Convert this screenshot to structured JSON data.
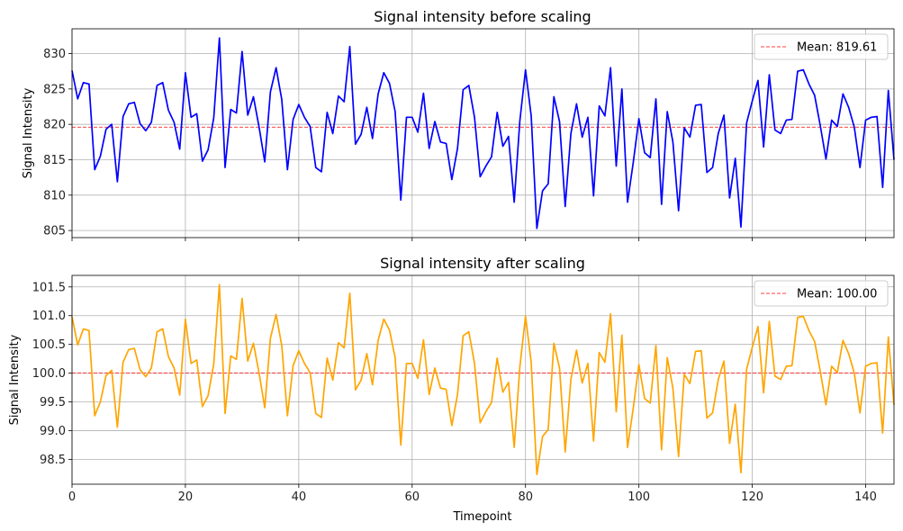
{
  "chart_data": [
    {
      "type": "line",
      "title": "Signal intensity before scaling",
      "xlabel": "",
      "ylabel": "Signal Intensity",
      "xlim": [
        0,
        145
      ],
      "ylim": [
        804,
        833.5
      ],
      "xticks": [
        0,
        20,
        40,
        60,
        80,
        100,
        120,
        140
      ],
      "xticklabels_visible": false,
      "yticks": [
        805,
        810,
        815,
        820,
        825,
        830
      ],
      "grid": true,
      "legend_position": "top-right",
      "series": [
        {
          "color": "#0000ff",
          "x_start": 0,
          "x_step": 1,
          "values": [
            827.6,
            823.6,
            825.9,
            825.7,
            813.6,
            815.5,
            819.3,
            820.0,
            811.9,
            821.1,
            822.9,
            823.1,
            820.1,
            819.1,
            820.3,
            825.5,
            825.9,
            822.0,
            820.3,
            816.5,
            827.3,
            821.0,
            821.5,
            814.8,
            816.4,
            820.9,
            832.2,
            813.9,
            822.1,
            821.6,
            830.3,
            821.3,
            823.9,
            819.6,
            814.7,
            824.6,
            828.0,
            823.5,
            813.6,
            820.7,
            822.8,
            821.0,
            819.7,
            813.9,
            813.3,
            821.7,
            818.7,
            824.0,
            823.2,
            831.0,
            817.2,
            818.6,
            822.4,
            818.0,
            824.3,
            827.3,
            825.8,
            821.8,
            809.3,
            821.0,
            821.0,
            818.9,
            824.4,
            816.6,
            820.4,
            817.5,
            817.3,
            812.2,
            816.6,
            824.9,
            825.5,
            821.0,
            812.6,
            814.1,
            815.4,
            821.7,
            816.9,
            818.3,
            809.0,
            820.5,
            827.7,
            821.2,
            805.3,
            810.6,
            811.6,
            823.9,
            820.4,
            808.4,
            818.7,
            822.9,
            818.2,
            821.0,
            809.9,
            822.6,
            821.2,
            828.0,
            814.1,
            825.0,
            809.0,
            814.6,
            820.8,
            816.0,
            815.3,
            823.6,
            808.7,
            821.8,
            817.5,
            807.8,
            819.5,
            818.2,
            822.7,
            822.8,
            813.2,
            813.9,
            818.7,
            821.3,
            809.6,
            815.2,
            805.5,
            820.2,
            823.3,
            826.2,
            816.8,
            827.0,
            819.2,
            818.7,
            820.6,
            820.7,
            827.5,
            827.7,
            825.7,
            824.1,
            819.8,
            815.1,
            820.6,
            819.7,
            824.3,
            822.4,
            819.6,
            813.9,
            820.6,
            821.0,
            821.1,
            811.1,
            824.8,
            815.0
          ]
        }
      ],
      "hline": {
        "value": 819.61,
        "label": "Mean: 819.61",
        "color": "#ff0000"
      }
    },
    {
      "type": "line",
      "title": "Signal intensity after scaling",
      "xlabel": "Timepoint",
      "ylabel": "Signal Intensity",
      "xlim": [
        0,
        145
      ],
      "ylim": [
        98.07,
        101.7
      ],
      "xticks": [
        0,
        20,
        40,
        60,
        80,
        100,
        120,
        140
      ],
      "xticklabels_visible": true,
      "yticks": [
        98.5,
        99.0,
        99.5,
        100.0,
        100.5,
        101.0,
        101.5
      ],
      "ytick_labels": [
        "98.5",
        "99.0",
        "99.5",
        "100.0",
        "100.5",
        "101.0",
        "101.5"
      ],
      "grid": true,
      "legend_position": "top-right",
      "series": [
        {
          "color": "#ffa500",
          "x_start": 0,
          "x_step": 1,
          "values": [
            100.98,
            100.49,
            100.77,
            100.74,
            99.26,
            99.5,
            99.96,
            100.05,
            99.06,
            100.19,
            100.41,
            100.43,
            100.06,
            99.94,
            100.09,
            100.72,
            100.77,
            100.29,
            100.09,
            99.62,
            100.94,
            100.17,
            100.23,
            99.42,
            99.61,
            100.16,
            101.54,
            99.3,
            100.3,
            100.24,
            101.3,
            100.21,
            100.52,
            100.0,
            99.4,
            100.61,
            101.02,
            100.48,
            99.26,
            100.13,
            100.39,
            100.17,
            100.01,
            99.3,
            99.23,
            100.26,
            99.88,
            100.53,
            100.44,
            101.39,
            99.71,
            99.88,
            100.34,
            99.8,
            100.57,
            100.94,
            100.75,
            100.27,
            98.75,
            100.17,
            100.17,
            99.91,
            100.58,
            99.63,
            100.09,
            99.74,
            99.72,
            99.09,
            99.63,
            100.65,
            100.72,
            100.17,
            99.14,
            99.33,
            99.49,
            100.26,
            99.67,
            99.84,
            98.71,
            100.11,
            100.99,
            100.19,
            98.24,
            98.9,
            99.02,
            100.52,
            100.09,
            98.63,
            99.89,
            100.4,
            99.83,
            100.17,
            98.82,
            100.36,
            100.19,
            101.03,
            99.33,
            100.66,
            98.71,
            99.39,
            100.15,
            99.56,
            99.48,
            100.48,
            98.67,
            100.27,
            99.74,
            98.55,
            99.98,
            99.82,
            100.38,
            100.39,
            99.22,
            99.31,
            99.89,
            100.21,
            98.78,
            99.46,
            98.27,
            100.07,
            100.45,
            100.81,
            99.66,
            100.9,
            99.95,
            99.89,
            100.12,
            100.13,
            100.97,
            100.99,
            100.74,
            100.55,
            100.03,
            99.45,
            100.12,
            100.01,
            100.57,
            100.34,
            100.0,
            99.31,
            100.12,
            100.17,
            100.18,
            98.96,
            100.63,
            99.45
          ]
        }
      ],
      "hline": {
        "value": 100.0,
        "label": "Mean: 100.00",
        "color": "#ff0000"
      }
    }
  ]
}
